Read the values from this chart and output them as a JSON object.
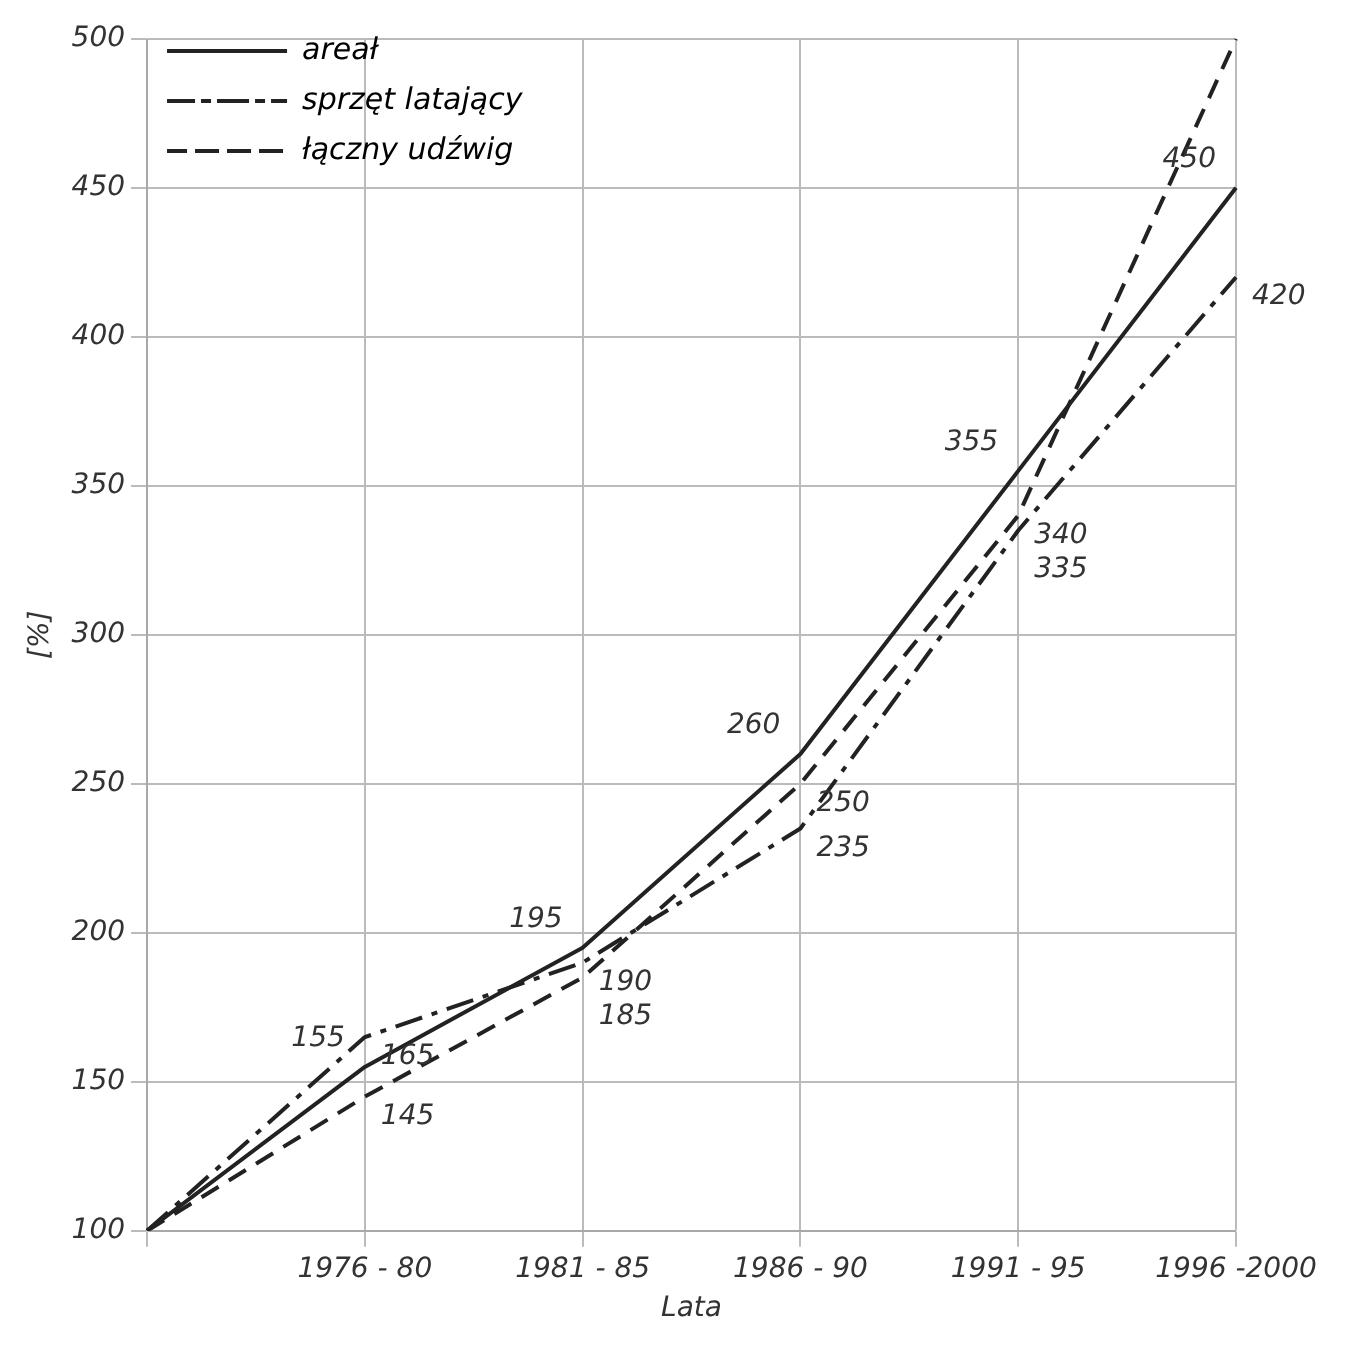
{
  "chart_data": {
    "type": "line",
    "xlabel": "Lata",
    "ylabel": "[%]",
    "categories": [
      null,
      "1976 - 80",
      "1981 - 85",
      "1986 - 90",
      "1991 - 95",
      "1996 -2000"
    ],
    "ylim": [
      100,
      500
    ],
    "yticks": [
      100,
      150,
      200,
      250,
      300,
      350,
      400,
      450,
      500
    ],
    "grid": true,
    "legend": "top left",
    "marker": "none",
    "series": [
      {
        "name": "areał",
        "color": "#222222",
        "line_style": "solid",
        "values": [
          100,
          155,
          195,
          260,
          355,
          450
        ],
        "value_labels": [
          null,
          "155",
          "195",
          "260",
          "355",
          "450"
        ]
      },
      {
        "name": "sprzęt latający",
        "color": "#222222",
        "line_style": "dashdot",
        "values": [
          100,
          165,
          190,
          235,
          335,
          420
        ],
        "value_labels": [
          null,
          "165",
          "190",
          "235",
          "335",
          "420"
        ]
      },
      {
        "name": "łączny udźwig",
        "color": "#222222",
        "line_style": "dashed",
        "values": [
          100,
          145,
          185,
          250,
          340,
          500
        ],
        "value_labels": [
          null,
          "145",
          "185",
          "250",
          "340",
          null
        ]
      }
    ]
  }
}
